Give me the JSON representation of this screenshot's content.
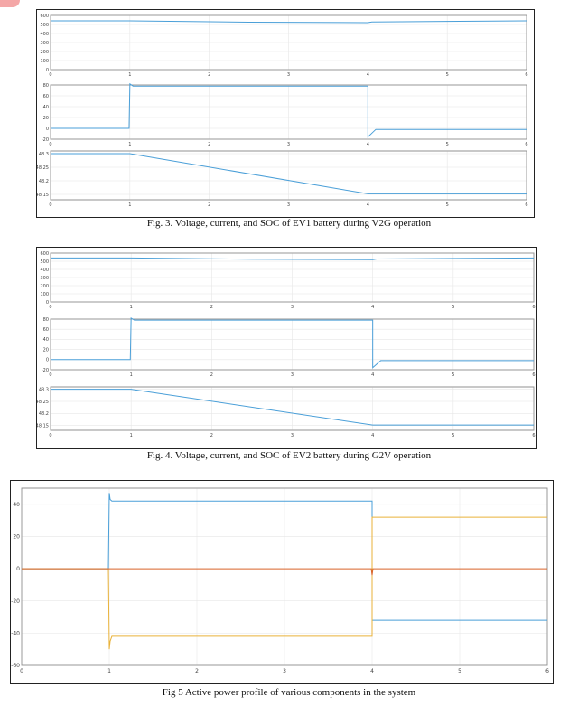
{
  "figures": [
    {
      "caption": "Fig. 3. Voltage, current, and SOC of EV1 battery during V2G operation",
      "chart_data": [
        {
          "type": "line",
          "xlim": [
            0,
            6
          ],
          "ylim": [
            0,
            600
          ],
          "yticks": [
            0,
            100,
            200,
            300,
            400,
            500,
            600
          ],
          "xticks": [
            0,
            1,
            2,
            3,
            4,
            5,
            6
          ],
          "grid": true,
          "series": [
            {
              "color": "#4a9fd8",
              "points": [
                [
                  0,
                  540
                ],
                [
                  1,
                  540
                ],
                [
                  2.5,
                  525
                ],
                [
                  4,
                  520
                ],
                [
                  4.05,
                  528
                ],
                [
                  6,
                  540
                ]
              ]
            }
          ]
        },
        {
          "type": "line",
          "xlim": [
            0,
            6
          ],
          "ylim": [
            -20,
            80
          ],
          "yticks": [
            -20,
            0,
            20,
            40,
            60,
            80
          ],
          "xticks": [
            0,
            1,
            2,
            3,
            4,
            5,
            6
          ],
          "grid": true,
          "series": [
            {
              "color": "#4a9fd8",
              "points": [
                [
                  0,
                  0
                ],
                [
                  0.99,
                  0
                ],
                [
                  1,
                  82
                ],
                [
                  1.04,
                  78
                ],
                [
                  4,
                  78
                ],
                [
                  4,
                  -16
                ],
                [
                  4.1,
                  -2
                ],
                [
                  6,
                  -2
                ]
              ]
            }
          ]
        },
        {
          "type": "line",
          "xlim": [
            0,
            6
          ],
          "ylim": [
            48.13,
            48.31
          ],
          "yticks": [
            48.15,
            48.2,
            48.25,
            48.3
          ],
          "xticks": [
            0,
            1,
            2,
            3,
            4,
            5,
            6
          ],
          "grid": true,
          "series": [
            {
              "color": "#4a9fd8",
              "points": [
                [
                  0,
                  48.3
                ],
                [
                  1,
                  48.3
                ],
                [
                  4,
                  48.152
                ],
                [
                  6,
                  48.152
                ]
              ]
            }
          ]
        }
      ]
    },
    {
      "caption": "Fig. 4. Voltage, current, and SOC of EV2 battery during G2V operation",
      "chart_data": [
        {
          "type": "line",
          "xlim": [
            0,
            6
          ],
          "ylim": [
            0,
            600
          ],
          "yticks": [
            0,
            100,
            200,
            300,
            400,
            500,
            600
          ],
          "xticks": [
            0,
            1,
            2,
            3,
            4,
            5,
            6
          ],
          "grid": true,
          "series": [
            {
              "color": "#4a9fd8",
              "points": [
                [
                  0,
                  540
                ],
                [
                  1,
                  540
                ],
                [
                  2.5,
                  525
                ],
                [
                  4,
                  520
                ],
                [
                  4.05,
                  528
                ],
                [
                  6,
                  540
                ]
              ]
            }
          ]
        },
        {
          "type": "line",
          "xlim": [
            0,
            6
          ],
          "ylim": [
            -20,
            80
          ],
          "yticks": [
            -20,
            0,
            20,
            40,
            60,
            80
          ],
          "xticks": [
            0,
            1,
            2,
            3,
            4,
            5,
            6
          ],
          "grid": true,
          "series": [
            {
              "color": "#4a9fd8",
              "points": [
                [
                  0,
                  0
                ],
                [
                  0.99,
                  0
                ],
                [
                  1,
                  82
                ],
                [
                  1.04,
                  78
                ],
                [
                  4,
                  78
                ],
                [
                  4,
                  -16
                ],
                [
                  4.1,
                  -2
                ],
                [
                  6,
                  -2
                ]
              ]
            }
          ]
        },
        {
          "type": "line",
          "xlim": [
            0,
            6
          ],
          "ylim": [
            48.13,
            48.31
          ],
          "yticks": [
            48.15,
            48.2,
            48.25,
            48.3
          ],
          "xticks": [
            0,
            1,
            2,
            3,
            4,
            5,
            6
          ],
          "grid": true,
          "series": [
            {
              "color": "#4a9fd8",
              "points": [
                [
                  0,
                  48.3
                ],
                [
                  1,
                  48.3
                ],
                [
                  4,
                  48.152
                ],
                [
                  6,
                  48.152
                ]
              ]
            }
          ]
        }
      ]
    },
    {
      "caption": "Fig 5 Active power profile of various components in the system",
      "chart_data": [
        {
          "type": "line",
          "xlim": [
            0,
            6
          ],
          "ylim": [
            -60,
            50
          ],
          "yticks": [
            -60,
            -40,
            -20,
            0,
            20,
            40
          ],
          "xticks": [
            0,
            1,
            2,
            3,
            4,
            5,
            6
          ],
          "grid": true,
          "series": [
            {
              "color": "#4a9fd8",
              "points": [
                [
                  0,
                  0
                ],
                [
                  0.99,
                  0
                ],
                [
                  1,
                  47
                ],
                [
                  1.01,
                  43
                ],
                [
                  1.03,
                  42
                ],
                [
                  4,
                  42
                ],
                [
                  4,
                  -32
                ],
                [
                  6,
                  -32
                ]
              ]
            },
            {
              "color": "#e9b23a",
              "points": [
                [
                  0,
                  0
                ],
                [
                  0.99,
                  0
                ],
                [
                  1,
                  -50
                ],
                [
                  1.01,
                  -45
                ],
                [
                  1.03,
                  -42
                ],
                [
                  4,
                  -42
                ],
                [
                  4,
                  32
                ],
                [
                  6,
                  32
                ]
              ]
            },
            {
              "color": "#d9642a",
              "points": [
                [
                  0,
                  0
                ],
                [
                  3.99,
                  0
                ],
                [
                  4,
                  -4
                ],
                [
                  4.01,
                  0
                ],
                [
                  6,
                  0
                ]
              ]
            }
          ]
        }
      ]
    }
  ]
}
